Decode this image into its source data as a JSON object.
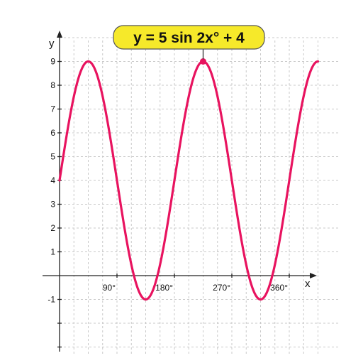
{
  "chart_data": {
    "type": "line",
    "title": "",
    "xlabel": "x",
    "ylabel": "y",
    "xlim": [
      0,
      405
    ],
    "ylim": [
      -3,
      10
    ],
    "x_ticks": [
      90,
      180,
      270,
      360
    ],
    "x_tick_labels": [
      "90°",
      "180°",
      "270°",
      "360°"
    ],
    "y_ticks": [
      -1,
      1,
      2,
      3,
      4,
      5,
      6,
      7,
      8,
      9
    ],
    "y_tick_labels": [
      "-1",
      "1",
      "2",
      "3",
      "4",
      "5",
      "6",
      "7",
      "8",
      "9"
    ],
    "grid": true,
    "series": [
      {
        "name": "",
        "formula": "y = 5 sin 2x° + 4",
        "color": "#e8135f",
        "x": [
          0,
          22.5,
          45,
          67.5,
          90,
          112.5,
          135,
          157.5,
          180,
          202.5,
          225,
          247.5,
          270,
          292.5,
          315,
          337.5,
          360,
          382.5,
          405
        ],
        "y": [
          4,
          7.54,
          9,
          7.54,
          4,
          0.46,
          -1,
          0.46,
          4,
          7.54,
          9,
          7.54,
          4,
          0.46,
          -1,
          0.46,
          4,
          7.54,
          9
        ]
      }
    ],
    "annotation": {
      "text": "y = 5 sin 2x° + 4",
      "point": [
        225,
        9
      ],
      "box_color": "#f6e92a"
    }
  }
}
